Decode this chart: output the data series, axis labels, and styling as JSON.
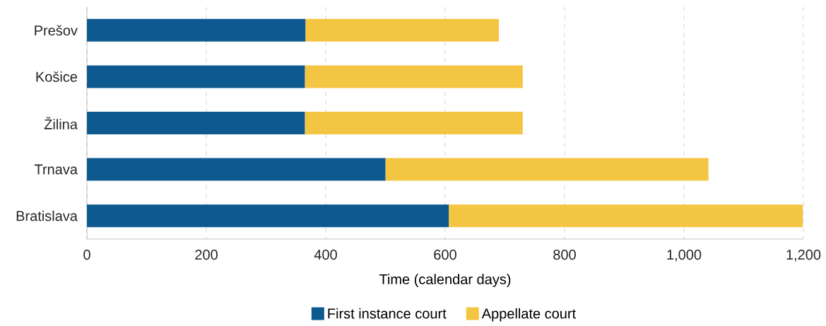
{
  "chart_data": {
    "type": "bar",
    "orientation": "horizontal",
    "stacked": true,
    "xlabel": "Time (calendar days)",
    "categories": [
      "Prešov",
      "Košice",
      "Žilina",
      "Trnava",
      "Bratislava"
    ],
    "series": [
      {
        "name": "First instance court",
        "color": "#0d5990",
        "values": [
          366,
          365,
          365,
          500,
          606
        ]
      },
      {
        "name": "Appellate court",
        "color": "#f4c542",
        "values": [
          324,
          365,
          365,
          541,
          593
        ]
      }
    ],
    "xlim": [
      0,
      1200
    ],
    "xticks": [
      0,
      200,
      400,
      600,
      800,
      {
        "value": 1000,
        "label": "1,000"
      },
      {
        "value": 1200,
        "label": "1,200"
      }
    ],
    "grid": "x",
    "legend": "bottom"
  }
}
